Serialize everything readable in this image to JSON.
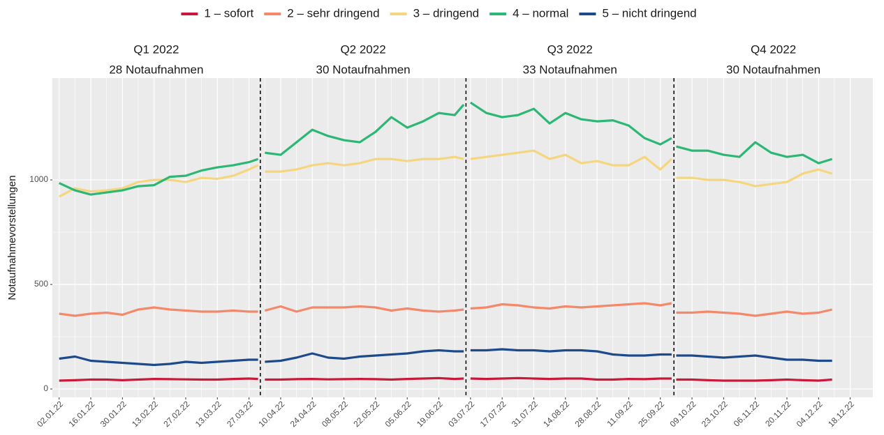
{
  "chart_data": {
    "type": "line",
    "y_label": "Notaufnahmevorstellungen",
    "facets": [
      {
        "title": "Q1 2022",
        "subtitle": "28 Notaufnahmen"
      },
      {
        "title": "Q2 2022",
        "subtitle": "30 Notaufnahmen"
      },
      {
        "title": "Q3 2022",
        "subtitle": "33 Notaufnahmen"
      },
      {
        "title": "Q4 2022",
        "subtitle": "30 Notaufnahmen"
      }
    ],
    "vlines": [
      "01.04.22",
      "01.07.22",
      "01.10.22"
    ],
    "x": [
      "02.01.22",
      "09.01.22",
      "16.01.22",
      "23.01.22",
      "30.01.22",
      "06.02.22",
      "13.02.22",
      "20.02.22",
      "27.02.22",
      "06.03.22",
      "13.03.22",
      "20.03.22",
      "27.03.22",
      "31.03.22",
      "01.04.22",
      "03.04.22",
      "10.04.22",
      "17.04.22",
      "24.04.22",
      "01.05.22",
      "08.05.22",
      "15.05.22",
      "22.05.22",
      "29.05.22",
      "05.06.22",
      "12.06.22",
      "19.06.22",
      "26.06.22",
      "30.06.22",
      "01.07.22",
      "03.07.22",
      "10.07.22",
      "17.07.22",
      "24.07.22",
      "31.07.22",
      "07.08.22",
      "14.08.22",
      "21.08.22",
      "28.08.22",
      "04.09.22",
      "11.09.22",
      "18.09.22",
      "25.09.22",
      "30.09.22",
      "01.10.22",
      "02.10.22",
      "09.10.22",
      "16.10.22",
      "23.10.22",
      "30.10.22",
      "06.11.22",
      "13.11.22",
      "20.11.22",
      "27.11.22",
      "04.12.22",
      "10.12.22"
    ],
    "series": [
      {
        "name": "1 – sofort",
        "color": "#c8193a",
        "values": [
          40,
          42,
          45,
          45,
          42,
          45,
          48,
          47,
          46,
          45,
          45,
          48,
          50,
          48,
          null,
          45,
          45,
          47,
          48,
          46,
          47,
          48,
          47,
          45,
          48,
          50,
          52,
          48,
          50,
          null,
          50,
          48,
          50,
          52,
          50,
          48,
          50,
          50,
          45,
          45,
          48,
          47,
          50,
          50,
          null,
          45,
          45,
          42,
          40,
          40,
          40,
          42,
          45,
          42,
          40,
          45
        ]
      },
      {
        "name": "2 – sehr dringend",
        "color": "#f4886a",
        "values": [
          360,
          350,
          360,
          365,
          355,
          380,
          390,
          380,
          375,
          370,
          370,
          375,
          370,
          370,
          null,
          375,
          395,
          370,
          390,
          390,
          390,
          395,
          390,
          375,
          385,
          375,
          370,
          375,
          380,
          null,
          385,
          390,
          405,
          400,
          390,
          385,
          395,
          390,
          395,
          400,
          405,
          410,
          400,
          410,
          null,
          365,
          365,
          370,
          365,
          360,
          350,
          360,
          370,
          360,
          365,
          380
        ]
      },
      {
        "name": "3 – dringend",
        "color": "#f5d67f",
        "values": [
          920,
          960,
          945,
          950,
          960,
          990,
          1000,
          1000,
          990,
          1010,
          1005,
          1020,
          1050,
          1070,
          null,
          1040,
          1040,
          1050,
          1070,
          1080,
          1070,
          1080,
          1100,
          1100,
          1090,
          1100,
          1100,
          1110,
          1100,
          null,
          1100,
          1110,
          1120,
          1130,
          1140,
          1100,
          1120,
          1080,
          1090,
          1070,
          1070,
          1110,
          1050,
          1100,
          null,
          1010,
          1010,
          1000,
          1000,
          990,
          970,
          980,
          990,
          1030,
          1050,
          1030
        ]
      },
      {
        "name": "4 – normal",
        "color": "#2cb774",
        "values": [
          985,
          950,
          930,
          940,
          950,
          970,
          975,
          1015,
          1020,
          1045,
          1060,
          1070,
          1085,
          1100,
          null,
          1130,
          1120,
          1180,
          1240,
          1210,
          1190,
          1180,
          1230,
          1300,
          1250,
          1280,
          1320,
          1310,
          1360,
          null,
          1370,
          1320,
          1300,
          1310,
          1340,
          1270,
          1320,
          1290,
          1280,
          1285,
          1260,
          1200,
          1170,
          1200,
          null,
          1160,
          1140,
          1140,
          1120,
          1110,
          1180,
          1130,
          1110,
          1120,
          1080,
          1100
        ]
      },
      {
        "name": "5 – nicht dringend",
        "color": "#1d4a8a",
        "values": [
          145,
          155,
          135,
          130,
          125,
          120,
          115,
          120,
          130,
          125,
          130,
          135,
          140,
          140,
          null,
          130,
          135,
          150,
          170,
          150,
          145,
          155,
          160,
          165,
          170,
          180,
          185,
          180,
          180,
          null,
          185,
          185,
          190,
          185,
          185,
          180,
          185,
          185,
          180,
          165,
          160,
          160,
          165,
          165,
          null,
          160,
          160,
          155,
          150,
          155,
          160,
          150,
          140,
          140,
          135,
          135
        ]
      }
    ],
    "xlim": [
      "30.12.21",
      "28.12.22"
    ],
    "xticks": [
      "02.01.22",
      "16.01.22",
      "30.01.22",
      "13.02.22",
      "27.02.22",
      "13.03.22",
      "27.03.22",
      "10.04.22",
      "24.04.22",
      "08.05.22",
      "22.05.22",
      "05.06.22",
      "19.06.22",
      "03.07.22",
      "17.07.22",
      "31.07.22",
      "14.08.22",
      "28.08.22",
      "11.09.22",
      "25.09.22",
      "09.10.22",
      "23.10.22",
      "06.11.22",
      "20.11.22",
      "04.12.22",
      "18.12.22"
    ],
    "ylim": [
      -40,
      1487
    ],
    "yticks": [
      0,
      500,
      1000
    ],
    "grid": true,
    "legend": "top"
  }
}
